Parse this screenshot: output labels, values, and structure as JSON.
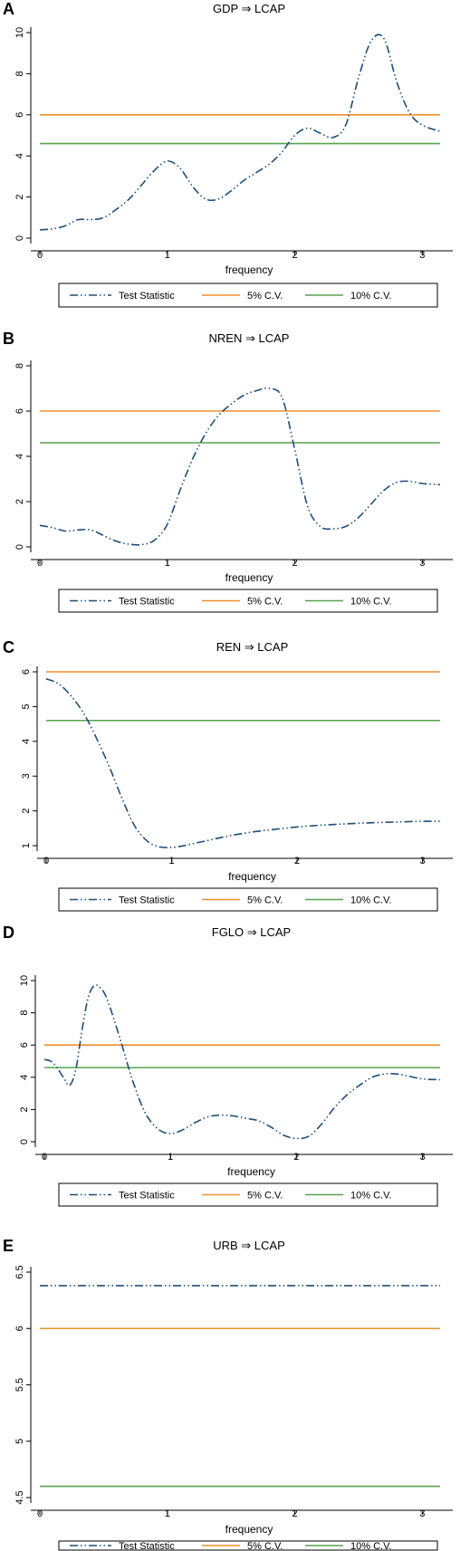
{
  "legend_labels": [
    "Test Statistic",
    "5% C.V.",
    "10% C.V."
  ],
  "colors": {
    "test_statistic": "#1f4e79",
    "cv5": "#f28e2b",
    "cv10": "#59a14f"
  },
  "chart_data": [
    {
      "panel": "A",
      "type": "line",
      "title": "GDP ⇒ LCAP",
      "xlabel": "frequency",
      "xlim": [
        0,
        3.14
      ],
      "ylim": [
        0,
        10
      ],
      "xticks": [
        0,
        1,
        2,
        3
      ],
      "yticks": [
        0,
        2,
        4,
        6,
        8,
        10
      ],
      "cv5": 6.0,
      "cv10": 4.6,
      "series": [
        {
          "name": "Test Statistic",
          "x": [
            0,
            0.1,
            0.2,
            0.3,
            0.4,
            0.5,
            0.6,
            0.7,
            0.8,
            0.9,
            1.0,
            1.1,
            1.2,
            1.3,
            1.4,
            1.5,
            1.6,
            1.7,
            1.8,
            1.9,
            2.0,
            2.1,
            2.2,
            2.3,
            2.4,
            2.5,
            2.6,
            2.7,
            2.8,
            2.9,
            3.0,
            3.14
          ],
          "y": [
            0.4,
            0.45,
            0.6,
            0.9,
            0.9,
            1.0,
            1.4,
            1.9,
            2.6,
            3.3,
            3.75,
            3.4,
            2.5,
            1.9,
            1.9,
            2.3,
            2.8,
            3.2,
            3.6,
            4.2,
            5.0,
            5.35,
            5.1,
            4.9,
            5.5,
            7.8,
            9.6,
            9.7,
            7.6,
            6.1,
            5.5,
            5.2
          ]
        }
      ]
    },
    {
      "panel": "B",
      "type": "line",
      "title": "NREN ⇒ LCAP",
      "xlabel": "frequency",
      "xlim": [
        0,
        3.14
      ],
      "ylim": [
        0,
        8
      ],
      "xticks": [
        0,
        1,
        2,
        3
      ],
      "yticks": [
        0,
        2,
        4,
        6,
        8
      ],
      "cv5": 6.0,
      "cv10": 4.6,
      "series": [
        {
          "name": "Test Statistic",
          "x": [
            0,
            0.1,
            0.2,
            0.3,
            0.4,
            0.5,
            0.6,
            0.7,
            0.8,
            0.9,
            1.0,
            1.1,
            1.2,
            1.3,
            1.4,
            1.5,
            1.6,
            1.7,
            1.8,
            1.9,
            2.0,
            2.1,
            2.2,
            2.3,
            2.4,
            2.5,
            2.6,
            2.7,
            2.8,
            2.9,
            3.0,
            3.14
          ],
          "y": [
            0.95,
            0.85,
            0.7,
            0.75,
            0.75,
            0.5,
            0.25,
            0.12,
            0.1,
            0.3,
            1.0,
            2.5,
            3.9,
            5.0,
            5.8,
            6.3,
            6.7,
            6.9,
            7.0,
            6.6,
            4.3,
            1.8,
            0.9,
            0.8,
            0.9,
            1.3,
            1.9,
            2.5,
            2.85,
            2.9,
            2.8,
            2.75
          ]
        }
      ]
    },
    {
      "panel": "C",
      "type": "line",
      "title": "REN ⇒ LCAP",
      "xlabel": "frequency",
      "xlim": [
        0,
        3.14
      ],
      "ylim": [
        1,
        6
      ],
      "xticks": [
        0,
        1,
        2,
        3
      ],
      "yticks": [
        1,
        2,
        3,
        4,
        5,
        6
      ],
      "cv5": 6.0,
      "cv10": 4.6,
      "series": [
        {
          "name": "Test Statistic",
          "x": [
            0,
            0.1,
            0.2,
            0.3,
            0.4,
            0.5,
            0.6,
            0.7,
            0.8,
            0.9,
            1.0,
            1.1,
            1.2,
            1.3,
            1.4,
            1.5,
            1.6,
            1.7,
            1.8,
            1.9,
            2.0,
            2.2,
            2.4,
            2.6,
            2.8,
            3.0,
            3.14
          ],
          "y": [
            5.8,
            5.65,
            5.3,
            4.8,
            4.1,
            3.3,
            2.4,
            1.6,
            1.15,
            0.97,
            0.95,
            1.0,
            1.08,
            1.16,
            1.24,
            1.31,
            1.37,
            1.42,
            1.46,
            1.5,
            1.54,
            1.59,
            1.63,
            1.66,
            1.68,
            1.7,
            1.7
          ]
        }
      ]
    },
    {
      "panel": "D",
      "type": "line",
      "title": "FGLO ⇒ LCAP",
      "xlabel": "frequency",
      "xlim": [
        0,
        3.14
      ],
      "ylim": [
        0,
        10
      ],
      "xticks": [
        0,
        1,
        2,
        3
      ],
      "yticks": [
        0,
        2,
        4,
        6,
        8,
        10
      ],
      "cv5": 6.0,
      "cv10": 4.6,
      "series": [
        {
          "name": "Test Statistic",
          "x": [
            0,
            0.05,
            0.1,
            0.15,
            0.2,
            0.25,
            0.3,
            0.35,
            0.4,
            0.45,
            0.5,
            0.6,
            0.7,
            0.8,
            0.9,
            1.0,
            1.1,
            1.2,
            1.3,
            1.4,
            1.5,
            1.6,
            1.7,
            1.8,
            1.9,
            2.0,
            2.1,
            2.2,
            2.3,
            2.4,
            2.5,
            2.6,
            2.7,
            2.8,
            2.9,
            3.0,
            3.14
          ],
          "y": [
            5.1,
            5.0,
            4.6,
            4.0,
            3.5,
            4.5,
            7.0,
            9.0,
            9.7,
            9.5,
            8.8,
            6.4,
            3.8,
            1.8,
            0.8,
            0.5,
            0.75,
            1.2,
            1.55,
            1.65,
            1.6,
            1.45,
            1.3,
            0.9,
            0.4,
            0.2,
            0.35,
            1.1,
            2.1,
            2.9,
            3.5,
            4.0,
            4.2,
            4.2,
            4.05,
            3.9,
            3.85
          ]
        }
      ]
    },
    {
      "panel": "E",
      "type": "line",
      "title": "URB ⇒ LCAP",
      "xlabel": "frequency",
      "xlim": [
        0,
        3.14
      ],
      "ylim": [
        4.5,
        6.5
      ],
      "xticks": [
        0,
        1,
        2,
        3
      ],
      "yticks": [
        4.5,
        5,
        5.5,
        6,
        6.5
      ],
      "cv5": 6.0,
      "cv10": 4.6,
      "series": [
        {
          "name": "Test Statistic",
          "x": [
            0,
            3.14
          ],
          "y": [
            6.38,
            6.38
          ]
        }
      ]
    }
  ]
}
